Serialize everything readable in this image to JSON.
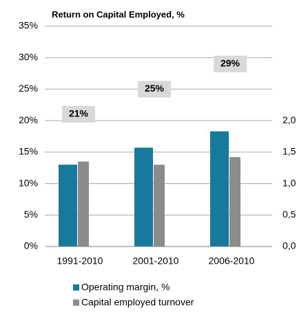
{
  "chart_data": {
    "type": "bar",
    "title": "Return on Capital Employed, %",
    "categories": [
      "1991-2010",
      "2001-2010",
      "2006-2010"
    ],
    "series": [
      {
        "name": "Operating margin, %",
        "color": "#17799b",
        "values": [
          13,
          15.7,
          18.3
        ]
      },
      {
        "name": "Capital employed turnover",
        "color": "#8c8c8c",
        "values": [
          1.35,
          1.3,
          1.42
        ],
        "axis": "y2"
      }
    ],
    "annotation_values": [
      21,
      25,
      29
    ],
    "annotation_labels": [
      "21%",
      "25%",
      "29%"
    ],
    "ylim": [
      0,
      35
    ],
    "yticks": [
      {
        "value": 0,
        "label": "0%"
      },
      {
        "value": 5,
        "label": "5%"
      },
      {
        "value": 10,
        "label": "10%"
      },
      {
        "value": 15,
        "label": "15%"
      },
      {
        "value": 20,
        "label": "20%"
      },
      {
        "value": 25,
        "label": "25%"
      },
      {
        "value": 30,
        "label": "30%"
      },
      {
        "value": 35,
        "label": "35%"
      }
    ],
    "y2lim": [
      0,
      3.5
    ],
    "y2ticks": [
      {
        "value": 0,
        "label": "0,0"
      },
      {
        "value": 0.5,
        "label": "0,5"
      },
      {
        "value": 1,
        "label": "1,0"
      },
      {
        "value": 1.5,
        "label": "1,5"
      },
      {
        "value": 2,
        "label": "2,0"
      }
    ],
    "grid": true
  }
}
